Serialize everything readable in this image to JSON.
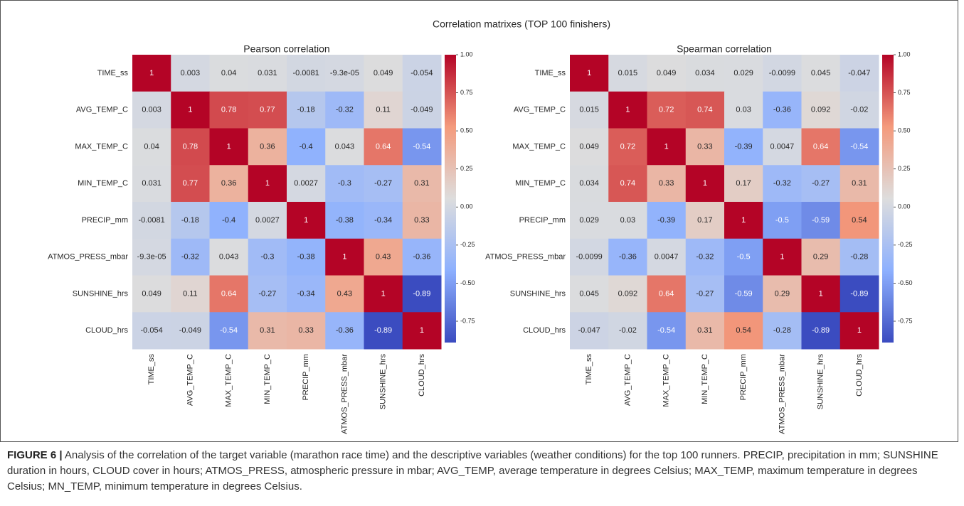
{
  "title": "Correlation matrixes (TOP 100 finishers)",
  "chart_data": [
    {
      "type": "heatmap",
      "title": "Pearson correlation",
      "colormap": "coolwarm",
      "x_categories": [
        "TIME_ss",
        "AVG_TEMP_C",
        "MAX_TEMP_C",
        "MIN_TEMP_C",
        "PRECIP_mm",
        "ATMOS_PRESS_mbar",
        "SUNSHINE_hrs",
        "CLOUD_hrs"
      ],
      "y_categories": [
        "TIME_ss",
        "AVG_TEMP_C",
        "MAX_TEMP_C",
        "MIN_TEMP_C",
        "PRECIP_mm",
        "ATMOS_PRESS_mbar",
        "SUNSHINE_hrs",
        "CLOUD_hrs"
      ],
      "values": [
        [
          1,
          0.003,
          0.04,
          0.031,
          -0.0081,
          -9.3e-05,
          0.049,
          -0.054
        ],
        [
          0.003,
          1,
          0.78,
          0.77,
          -0.18,
          -0.32,
          0.11,
          -0.049
        ],
        [
          0.04,
          0.78,
          1,
          0.36,
          -0.4,
          0.043,
          0.64,
          -0.54
        ],
        [
          0.031,
          0.77,
          0.36,
          1,
          0.0027,
          -0.3,
          -0.27,
          0.31
        ],
        [
          -0.0081,
          -0.18,
          -0.4,
          0.0027,
          1,
          -0.38,
          -0.34,
          0.33
        ],
        [
          -9.3e-05,
          -0.32,
          0.043,
          -0.3,
          -0.38,
          1,
          0.43,
          -0.36
        ],
        [
          0.049,
          0.11,
          0.64,
          -0.27,
          -0.34,
          0.43,
          1,
          -0.89
        ],
        [
          -0.054,
          -0.049,
          -0.54,
          0.31,
          0.33,
          -0.36,
          -0.89,
          1
        ]
      ],
      "value_labels": [
        [
          "1",
          "0.003",
          "0.04",
          "0.031",
          "-0.0081",
          "-9.3e-05",
          "0.049",
          "-0.054"
        ],
        [
          "0.003",
          "1",
          "0.78",
          "0.77",
          "-0.18",
          "-0.32",
          "0.11",
          "-0.049"
        ],
        [
          "0.04",
          "0.78",
          "1",
          "0.36",
          "-0.4",
          "0.043",
          "0.64",
          "-0.54"
        ],
        [
          "0.031",
          "0.77",
          "0.36",
          "1",
          "0.0027",
          "-0.3",
          "-0.27",
          "0.31"
        ],
        [
          "-0.0081",
          "-0.18",
          "-0.4",
          "0.0027",
          "1",
          "-0.38",
          "-0.34",
          "0.33"
        ],
        [
          "-9.3e-05",
          "-0.32",
          "0.043",
          "-0.3",
          "-0.38",
          "1",
          "0.43",
          "-0.36"
        ],
        [
          "0.049",
          "0.11",
          "0.64",
          "-0.27",
          "-0.34",
          "0.43",
          "1",
          "-0.89"
        ],
        [
          "-0.054",
          "-0.049",
          "-0.54",
          "0.31",
          "0.33",
          "-0.36",
          "-0.89",
          "1"
        ]
      ],
      "zlim": [
        -0.89,
        1
      ],
      "zticks": [
        {
          "value": 1,
          "label": "1.00"
        },
        {
          "value": 0.75,
          "label": "0.75"
        },
        {
          "value": 0.5,
          "label": "0.50"
        },
        {
          "value": 0.25,
          "label": "0.25"
        },
        {
          "value": 0,
          "label": "0.00"
        },
        {
          "value": -0.25,
          "label": "-0.25"
        },
        {
          "value": -0.5,
          "label": "-0.50"
        },
        {
          "value": -0.75,
          "label": "-0.75"
        }
      ]
    },
    {
      "type": "heatmap",
      "title": "Spearman correlation",
      "colormap": "coolwarm",
      "x_categories": [
        "TIME_ss",
        "AVG_TEMP_C",
        "MAX_TEMP_C",
        "MIN_TEMP_C",
        "PRECIP_mm",
        "ATMOS_PRESS_mbar",
        "SUNSHINE_hrs",
        "CLOUD_hrs"
      ],
      "y_categories": [
        "TIME_ss",
        "AVG_TEMP_C",
        "MAX_TEMP_C",
        "MIN_TEMP_C",
        "PRECIP_mm",
        "ATMOS_PRESS_mbar",
        "SUNSHINE_hrs",
        "CLOUD_hrs"
      ],
      "values": [
        [
          1,
          0.015,
          0.049,
          0.034,
          0.029,
          -0.0099,
          0.045,
          -0.047
        ],
        [
          0.015,
          1,
          0.72,
          0.74,
          0.03,
          -0.36,
          0.092,
          -0.02
        ],
        [
          0.049,
          0.72,
          1,
          0.33,
          -0.39,
          0.0047,
          0.64,
          -0.54
        ],
        [
          0.034,
          0.74,
          0.33,
          1,
          0.17,
          -0.32,
          -0.27,
          0.31
        ],
        [
          0.029,
          0.03,
          -0.39,
          0.17,
          1,
          -0.5,
          -0.59,
          0.54
        ],
        [
          -0.0099,
          -0.36,
          0.0047,
          -0.32,
          -0.5,
          1,
          0.29,
          -0.28
        ],
        [
          0.045,
          0.092,
          0.64,
          -0.27,
          -0.59,
          0.29,
          1,
          -0.89
        ],
        [
          -0.047,
          -0.02,
          -0.54,
          0.31,
          0.54,
          -0.28,
          -0.89,
          1
        ]
      ],
      "value_labels": [
        [
          "1",
          "0.015",
          "0.049",
          "0.034",
          "0.029",
          "-0.0099",
          "0.045",
          "-0.047"
        ],
        [
          "0.015",
          "1",
          "0.72",
          "0.74",
          "0.03",
          "-0.36",
          "0.092",
          "-0.02"
        ],
        [
          "0.049",
          "0.72",
          "1",
          "0.33",
          "-0.39",
          "0.0047",
          "0.64",
          "-0.54"
        ],
        [
          "0.034",
          "0.74",
          "0.33",
          "1",
          "0.17",
          "-0.32",
          "-0.27",
          "0.31"
        ],
        [
          "0.029",
          "0.03",
          "-0.39",
          "0.17",
          "1",
          "-0.5",
          "-0.59",
          "0.54"
        ],
        [
          "-0.0099",
          "-0.36",
          "0.0047",
          "-0.32",
          "-0.5",
          "1",
          "0.29",
          "-0.28"
        ],
        [
          "0.045",
          "0.092",
          "0.64",
          "-0.27",
          "-0.59",
          "0.29",
          "1",
          "-0.89"
        ],
        [
          "-0.047",
          "-0.02",
          "-0.54",
          "0.31",
          "0.54",
          "-0.28",
          "-0.89",
          "1"
        ]
      ],
      "zlim": [
        -0.89,
        1
      ],
      "zticks": [
        {
          "value": 1,
          "label": "1.00"
        },
        {
          "value": 0.75,
          "label": "0.75"
        },
        {
          "value": 0.5,
          "label": "0.50"
        },
        {
          "value": 0.25,
          "label": "0.25"
        },
        {
          "value": 0,
          "label": "0.00"
        },
        {
          "value": -0.25,
          "label": "-0.25"
        },
        {
          "value": -0.5,
          "label": "-0.50"
        },
        {
          "value": -0.75,
          "label": "-0.75"
        }
      ]
    }
  ],
  "caption": {
    "label": "FIGURE 6 |",
    "text": "Analysis of the correlation of the target variable (marathon race time) and the descriptive variables (weather conditions) for the top 100 runners. PRECIP, precipitation in mm; SUNSHINE duration in hours, CLOUD cover in hours; ATMOS_PRESS, atmospheric pressure in mbar; AVG_TEMP, average temperature in degrees Celsius; MAX_TEMP, maximum temperature in degrees Celsius; MN_TEMP, minimum temperature in degrees Celsius."
  }
}
